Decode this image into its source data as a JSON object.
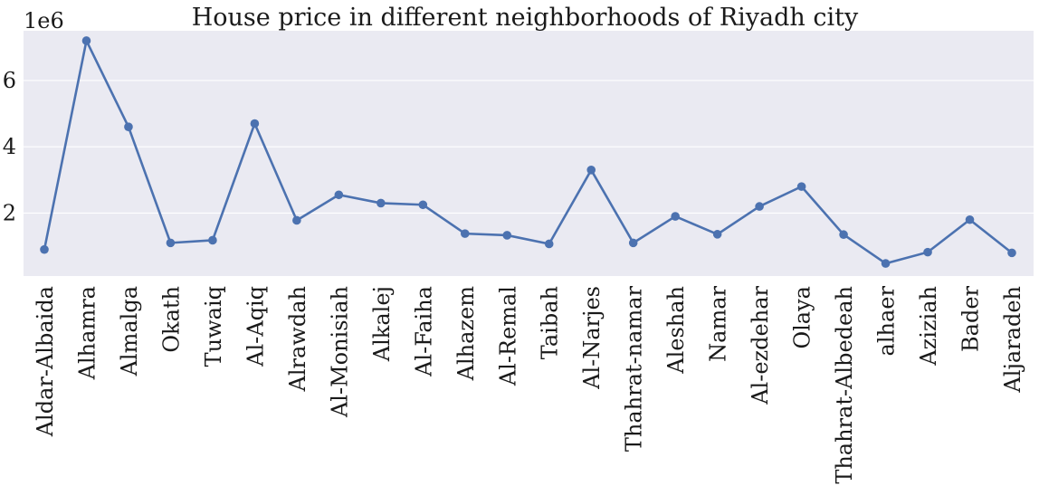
{
  "chart_data": {
    "type": "line",
    "title": "House price in different neighborhoods of Riyadh city",
    "xlabel": "",
    "ylabel": "",
    "y_offset_label": "1e6",
    "y_ticks": [
      2,
      4,
      6
    ],
    "y_tick_labels": [
      "2",
      "4",
      "6"
    ],
    "ylim": [
      0.1,
      7.5
    ],
    "grid": true,
    "marker": "circle",
    "colors": {
      "background": "#eaeaf2",
      "series": "#4c72b0",
      "grid": "#ffffff"
    },
    "categories": [
      "Aldar-Albaida",
      "Alhamra",
      "Almalga",
      "Okath",
      "Tuwaiq",
      "Al-Aqiq",
      "Alrawdah",
      "Al-Monisiah",
      "Alkalej",
      "Al-Faiha",
      "Alhazem",
      "Al-Remal",
      "Taibah",
      "Al-Narjes",
      "Thahrat-namar",
      "Aleshah",
      "Namar",
      "Al-ezdehar",
      "Olaya",
      "Thahrat-Albedeah",
      "alhaer",
      "Aziziah",
      "Bader",
      "Aljaradeh"
    ],
    "values": [
      0.9,
      7.2,
      4.6,
      1.1,
      1.18,
      4.7,
      1.78,
      2.55,
      2.3,
      2.25,
      1.38,
      1.33,
      1.07,
      3.3,
      1.1,
      1.9,
      1.36,
      2.2,
      2.8,
      1.35,
      0.48,
      0.82,
      1.8,
      0.8
    ]
  }
}
